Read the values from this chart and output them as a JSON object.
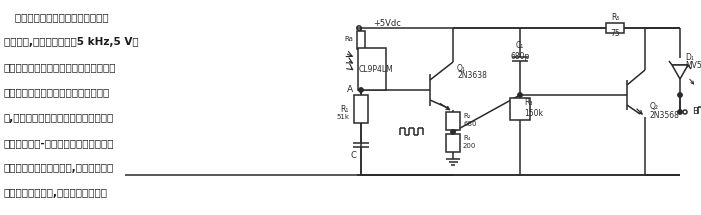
{
  "chinese_text_lines": [
    "   只有当光电池被其伴随的发光二极",
    "管照射时,本电路才产生约5 kHz,5 V的",
    "脉冲。重复频率随照度而变化。因此光线",
    "的中断或衰减会产生便于检测的频率变",
    "化,这种变化可以用作控制信号。本电路",
    "可应用于失效-安全中断监视器和照明换",
    "能器。若光束被完全中断,或者很强的光",
    "线照射到光电池上,则电路停止振荡。"
  ],
  "bg_color": "#ffffff",
  "text_color": "#1a1a1a",
  "circuit_color": "#2a2a2a"
}
